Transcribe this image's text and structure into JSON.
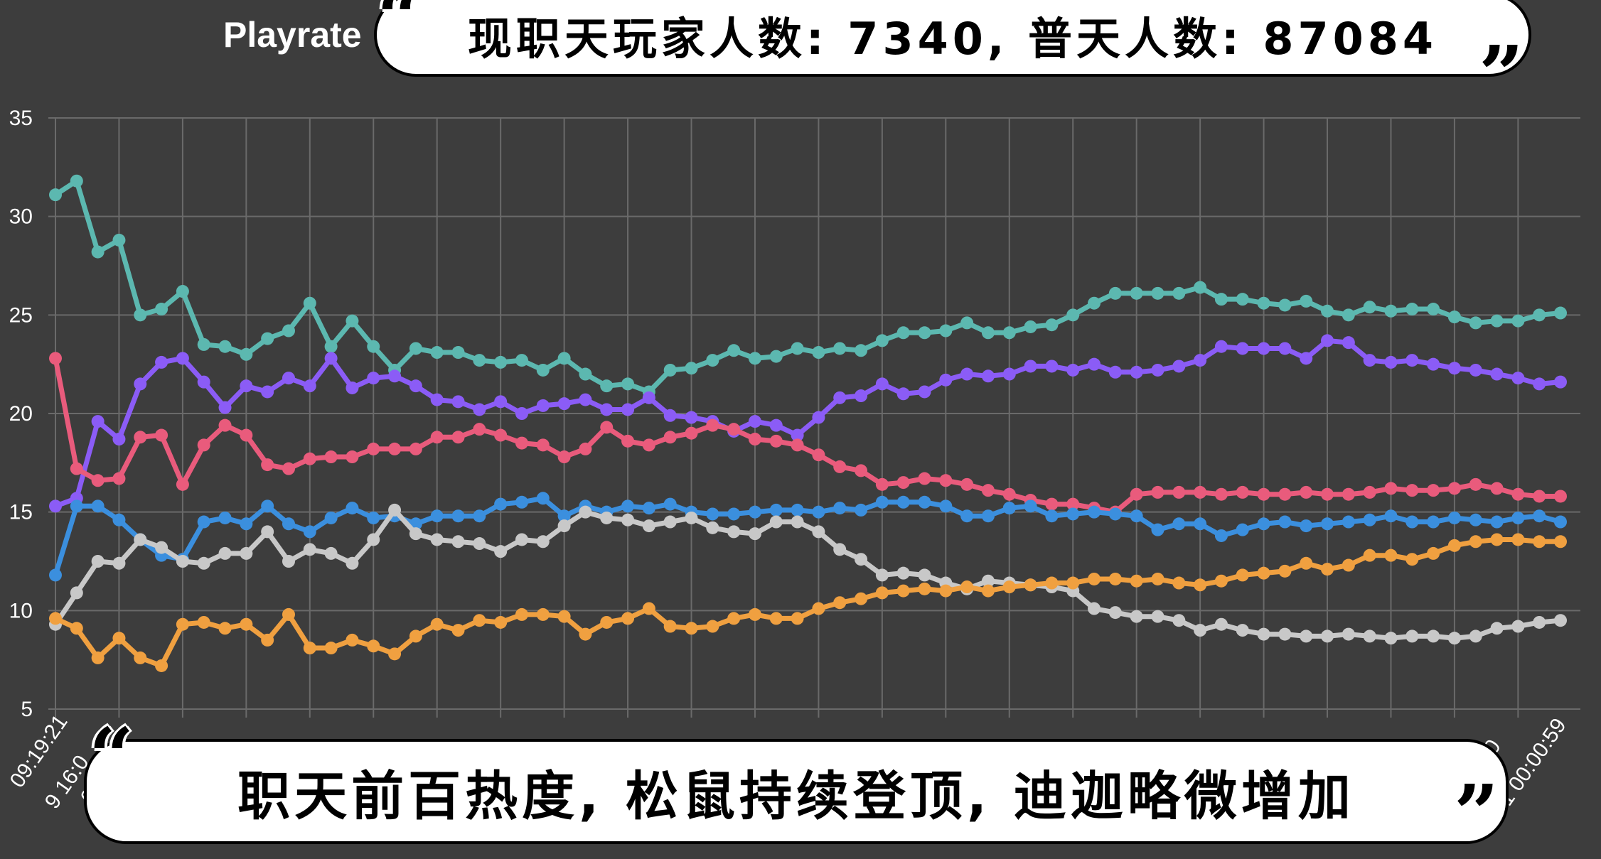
{
  "banner_top": "现职天玩家人数: 7340, 普天人数: 87084",
  "banner_bottom": "职天前百热度, 松鼠持续登顶, 迪迦略微增加",
  "quote_open": "“",
  "quote_close": "”",
  "chart_data": {
    "type": "line",
    "title": "Playrate",
    "ylim": [
      5,
      35
    ],
    "yticks": [
      5,
      10,
      15,
      20,
      25,
      30,
      35
    ],
    "grid": true,
    "xtick_labels_visible": [
      "09:19:21",
      "9 16:0",
      "0",
      "00",
      "1 00:00:59"
    ],
    "colors": {
      "background": "#3d3d3d",
      "grid": "#6a6a6a"
    },
    "series": [
      {
        "color": "#5cb8b0",
        "values": [
          31.1,
          31.8,
          28.2,
          28.8,
          25.0,
          25.3,
          26.2,
          23.5,
          23.4,
          23.0,
          23.8,
          24.2,
          25.6,
          23.4,
          24.7,
          23.4,
          22.2,
          23.3,
          23.1,
          23.1,
          22.7,
          22.6,
          22.7,
          22.2,
          22.8,
          22.0,
          21.4,
          21.5,
          21.1,
          22.2,
          22.3,
          22.7,
          23.2,
          22.8,
          22.9,
          23.3,
          23.1,
          23.3,
          23.2,
          23.7,
          24.1,
          24.1,
          24.2,
          24.6,
          24.1,
          24.1,
          24.4,
          24.5,
          25.0,
          25.6,
          26.1,
          26.1,
          26.1,
          26.1,
          26.4,
          25.8,
          25.8,
          25.6,
          25.5,
          25.7,
          25.2,
          25.0,
          25.4,
          25.2,
          25.3,
          25.3,
          24.9,
          24.6,
          24.7,
          24.7,
          25.0,
          25.1
        ]
      },
      {
        "color": "#8b5cf6",
        "values": [
          15.3,
          15.7,
          19.6,
          18.7,
          21.5,
          22.6,
          22.8,
          21.6,
          20.3,
          21.4,
          21.1,
          21.8,
          21.4,
          22.8,
          21.3,
          21.8,
          21.9,
          21.4,
          20.7,
          20.6,
          20.2,
          20.6,
          20.0,
          20.4,
          20.5,
          20.7,
          20.2,
          20.2,
          20.8,
          19.9,
          19.8,
          19.6,
          19.1,
          19.6,
          19.4,
          18.9,
          19.8,
          20.8,
          20.9,
          21.5,
          21.0,
          21.1,
          21.7,
          22.0,
          21.9,
          22.0,
          22.4,
          22.4,
          22.2,
          22.5,
          22.1,
          22.1,
          22.2,
          22.4,
          22.7,
          23.4,
          23.3,
          23.3,
          23.3,
          22.8,
          23.7,
          23.6,
          22.7,
          22.6,
          22.7,
          22.5,
          22.3,
          22.2,
          22.0,
          21.8,
          21.5,
          21.6
        ]
      },
      {
        "color": "#e95b7c",
        "values": [
          22.8,
          17.2,
          16.6,
          16.7,
          18.8,
          18.9,
          16.4,
          18.4,
          19.4,
          18.9,
          17.4,
          17.2,
          17.7,
          17.8,
          17.8,
          18.2,
          18.2,
          18.2,
          18.8,
          18.8,
          19.2,
          18.9,
          18.5,
          18.4,
          17.8,
          18.2,
          19.3,
          18.6,
          18.4,
          18.8,
          19.0,
          19.4,
          19.2,
          18.7,
          18.6,
          18.4,
          17.9,
          17.3,
          17.1,
          16.4,
          16.5,
          16.7,
          16.6,
          16.4,
          16.1,
          15.9,
          15.6,
          15.4,
          15.4,
          15.2,
          15.0,
          15.9,
          16.0,
          16.0,
          16.0,
          15.9,
          16.0,
          15.9,
          15.9,
          16.0,
          15.9,
          15.9,
          16.0,
          16.2,
          16.1,
          16.1,
          16.2,
          16.4,
          16.2,
          15.9,
          15.8,
          15.8
        ]
      },
      {
        "color": "#3b8fde",
        "values": [
          11.8,
          15.3,
          15.3,
          14.6,
          13.6,
          12.8,
          12.6,
          14.5,
          14.7,
          14.4,
          15.3,
          14.4,
          14.0,
          14.7,
          15.2,
          14.7,
          14.8,
          14.4,
          14.8,
          14.8,
          14.8,
          15.4,
          15.5,
          15.7,
          14.8,
          15.3,
          15.0,
          15.3,
          15.2,
          15.4,
          15.0,
          14.9,
          14.9,
          15.0,
          15.1,
          15.1,
          15.0,
          15.2,
          15.1,
          15.5,
          15.5,
          15.5,
          15.3,
          14.8,
          14.8,
          15.2,
          15.3,
          14.8,
          14.9,
          15.0,
          14.9,
          14.8,
          14.1,
          14.4,
          14.4,
          13.8,
          14.1,
          14.4,
          14.5,
          14.3,
          14.4,
          14.5,
          14.6,
          14.8,
          14.5,
          14.5,
          14.7,
          14.6,
          14.5,
          14.7,
          14.8,
          14.5
        ]
      },
      {
        "color": "#c8c8c8",
        "values": [
          9.3,
          10.9,
          12.5,
          12.4,
          13.6,
          13.2,
          12.5,
          12.4,
          12.9,
          12.9,
          14.0,
          12.5,
          13.1,
          12.9,
          12.4,
          13.6,
          15.1,
          13.9,
          13.6,
          13.5,
          13.4,
          13.0,
          13.6,
          13.5,
          14.3,
          15.0,
          14.7,
          14.6,
          14.3,
          14.5,
          14.7,
          14.2,
          14.0,
          13.9,
          14.5,
          14.5,
          14.0,
          13.1,
          12.6,
          11.8,
          11.9,
          11.8,
          11.4,
          11.1,
          11.5,
          11.4,
          11.3,
          11.2,
          11.0,
          10.1,
          9.9,
          9.7,
          9.7,
          9.5,
          9.0,
          9.3,
          9.0,
          8.8,
          8.8,
          8.7,
          8.7,
          8.8,
          8.7,
          8.6,
          8.7,
          8.7,
          8.6,
          8.7,
          9.1,
          9.2,
          9.4,
          9.5
        ]
      },
      {
        "color": "#f0a040",
        "values": [
          9.6,
          9.1,
          7.6,
          8.6,
          7.6,
          7.2,
          9.3,
          9.4,
          9.1,
          9.3,
          8.5,
          9.8,
          8.1,
          8.1,
          8.5,
          8.2,
          7.8,
          8.7,
          9.3,
          9.0,
          9.5,
          9.4,
          9.8,
          9.8,
          9.7,
          8.8,
          9.4,
          9.6,
          10.1,
          9.2,
          9.1,
          9.2,
          9.6,
          9.8,
          9.6,
          9.6,
          10.1,
          10.4,
          10.6,
          10.9,
          11.0,
          11.1,
          11.0,
          11.2,
          11.0,
          11.2,
          11.3,
          11.4,
          11.4,
          11.6,
          11.6,
          11.5,
          11.6,
          11.4,
          11.3,
          11.5,
          11.8,
          11.9,
          12.0,
          12.4,
          12.1,
          12.3,
          12.8,
          12.8,
          12.6,
          12.9,
          13.3,
          13.5,
          13.6,
          13.6,
          13.5,
          13.5
        ]
      }
    ]
  }
}
